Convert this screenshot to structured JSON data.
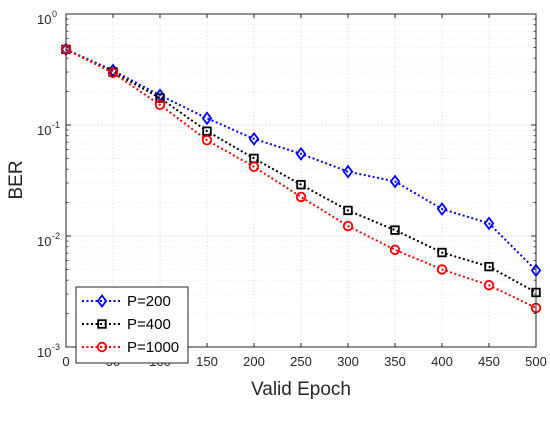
{
  "chart_data": {
    "type": "line",
    "xlabel": "Valid Epoch",
    "ylabel": "BER",
    "yscale": "log",
    "xlim": [
      0,
      500
    ],
    "ylim": [
      0.001,
      1
    ],
    "grid": true,
    "legend_position": "bottom-left",
    "x_ticks": [
      "0",
      "50",
      "100",
      "150",
      "200",
      "250",
      "300",
      "350",
      "400",
      "450",
      "500"
    ],
    "y_ticks": [
      {
        "base": "10",
        "exp": "-3"
      },
      {
        "base": "10",
        "exp": "-2"
      },
      {
        "base": "10",
        "exp": "-1"
      },
      {
        "base": "10",
        "exp": "0"
      }
    ],
    "x": [
      0,
      50,
      100,
      150,
      200,
      250,
      300,
      350,
      400,
      450,
      500
    ],
    "series": [
      {
        "name": "P=200",
        "color": "#0000ff",
        "marker": "diamond",
        "line_style": "dotted",
        "values": [
          0.48,
          0.31,
          0.185,
          0.115,
          0.075,
          0.055,
          0.038,
          0.031,
          0.0175,
          0.013,
          0.0049
        ]
      },
      {
        "name": "P=400",
        "color": "#000000",
        "marker": "square",
        "line_style": "dotted",
        "values": [
          0.48,
          0.3,
          0.175,
          0.088,
          0.05,
          0.029,
          0.017,
          0.0113,
          0.0071,
          0.0053,
          0.0031
        ]
      },
      {
        "name": "P=1000",
        "color": "#ff0000",
        "marker": "circle",
        "line_style": "dotted",
        "values": [
          0.48,
          0.295,
          0.152,
          0.073,
          0.042,
          0.0225,
          0.0123,
          0.0075,
          0.005,
          0.0036,
          0.00225
        ]
      }
    ]
  }
}
